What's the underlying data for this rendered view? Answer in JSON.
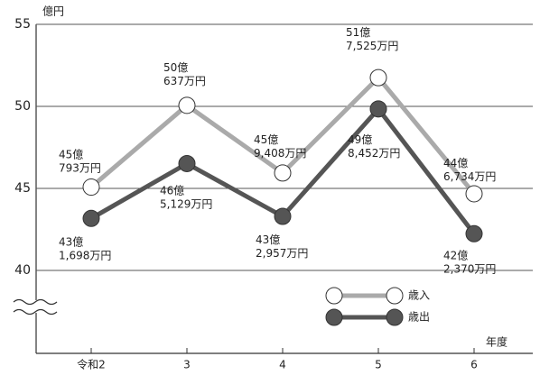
{
  "chart_data": {
    "type": "line",
    "y_label": "億円",
    "x_label": "年度",
    "categories": [
      "令和2",
      "3",
      "4",
      "5",
      "6"
    ],
    "series": [
      {
        "name": "歳入",
        "color": "#aaaaaa",
        "marker_fill": "#ffffff",
        "values": [
          45.0793,
          50.0637,
          45.9408,
          51.7525,
          44.6734
        ],
        "value_labels": [
          [
            "45億",
            "793万円"
          ],
          [
            "50億",
            "637万円"
          ],
          [
            "45億",
            "9,408万円"
          ],
          [
            "51億",
            "7,525万円"
          ],
          [
            "44億",
            "6,734万円"
          ]
        ]
      },
      {
        "name": "歳出",
        "color": "#555555",
        "marker_fill": "#555555",
        "values": [
          43.1698,
          46.5129,
          43.2957,
          49.8452,
          42.237
        ],
        "value_labels": [
          [
            "43億",
            "1,698万円"
          ],
          [
            "46億",
            "5,129万円"
          ],
          [
            "43億",
            "2,957万円"
          ],
          [
            "49億",
            "8,452万円"
          ],
          [
            "42億",
            "2,370万円"
          ]
        ]
      }
    ],
    "ylim": [
      40,
      55
    ],
    "yticks": [
      40,
      45,
      50,
      55
    ],
    "grid": true
  }
}
